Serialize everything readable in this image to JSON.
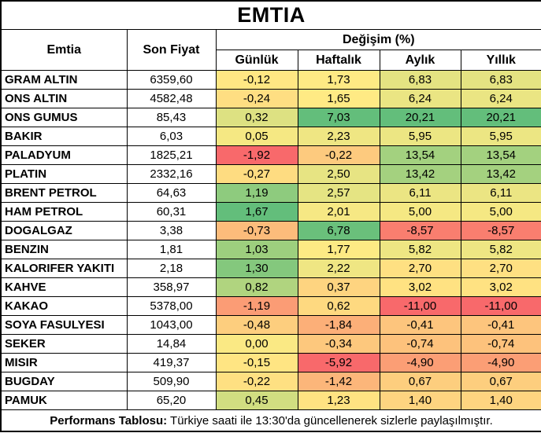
{
  "title": "EMTIA",
  "colors": {
    "border": "#000000",
    "background": "#ffffff",
    "scale_min_red": "#F8696B",
    "scale_mid_yellow": "#FFEB84",
    "scale_max_green": "#63BE7B"
  },
  "table": {
    "col_headers": {
      "emtia": "Emtia",
      "son_fiyat": "Son Fiyat",
      "degisim": "Değişim (%)",
      "sub": [
        "Günlük",
        "Haftalık",
        "Aylık",
        "Yıllık"
      ]
    },
    "rows": [
      {
        "name": "GRAM ALTIN",
        "price": "6359,60",
        "changes": [
          "-0,12",
          "1,73",
          "6,83",
          "6,83"
        ],
        "colors": [
          "#FFE783",
          "#FEEA84",
          "#E4E382",
          "#E4E382"
        ]
      },
      {
        "name": "ONS ALTIN",
        "price": "4582,48",
        "changes": [
          "-0,24",
          "1,65",
          "6,24",
          "6,24"
        ],
        "colors": [
          "#FEDE82",
          "#FFEA84",
          "#EAE583",
          "#EAE583"
        ]
      },
      {
        "name": "ONS GUMUS",
        "price": "85,43",
        "changes": [
          "0,32",
          "7,03",
          "20,21",
          "20,21"
        ],
        "colors": [
          "#DDE182",
          "#63BE7B",
          "#63BE7B",
          "#63BE7B"
        ]
      },
      {
        "name": "BAKIR",
        "price": "6,03",
        "changes": [
          "0,05",
          "2,23",
          "5,95",
          "5,95"
        ],
        "colors": [
          "#F5E883",
          "#EFE683",
          "#ECE683",
          "#ECE683"
        ]
      },
      {
        "name": "PALADYUM",
        "price": "1825,21",
        "changes": [
          "-1,92",
          "-0,22",
          "13,54",
          "13,54"
        ],
        "colors": [
          "#F8696B",
          "#FDCA7E",
          "#A3D17F",
          "#A3D17F"
        ]
      },
      {
        "name": "PLATIN",
        "price": "2332,16",
        "changes": [
          "-0,27",
          "2,50",
          "13,42",
          "13,42"
        ],
        "colors": [
          "#FEDC81",
          "#E7E483",
          "#A4D17F",
          "#A4D17F"
        ]
      },
      {
        "name": "BRENT PETROL",
        "price": "64,63",
        "changes": [
          "1,19",
          "2,57",
          "6,11",
          "6,11"
        ],
        "colors": [
          "#8ECB7E",
          "#E5E483",
          "#EBE583",
          "#EBE583"
        ]
      },
      {
        "name": "HAM PETROL",
        "price": "60,31",
        "changes": [
          "1,67",
          "2,01",
          "5,00",
          "5,00"
        ],
        "colors": [
          "#63BE7B",
          "#F6E884",
          "#F5E883",
          "#F5E883"
        ]
      },
      {
        "name": "DOGALGAZ",
        "price": "3,38",
        "changes": [
          "-0,73",
          "6,78",
          "-8,57",
          "-8,57"
        ],
        "colors": [
          "#FCBC7B",
          "#6AC07B",
          "#F97E6F",
          "#F97E6F"
        ]
      },
      {
        "name": "BENZIN",
        "price": "1,81",
        "changes": [
          "1,03",
          "1,77",
          "5,82",
          "5,82"
        ],
        "colors": [
          "#9DCF7E",
          "#FDEA84",
          "#EEE683",
          "#EEE683"
        ]
      },
      {
        "name": "KALORIFER YAKITI",
        "price": "2,18",
        "changes": [
          "1,30",
          "2,22",
          "2,70",
          "2,70"
        ],
        "colors": [
          "#84C87D",
          "#EFE683",
          "#FEE082",
          "#FEE082"
        ]
      },
      {
        "name": "KAHVE",
        "price": "358,97",
        "changes": [
          "0,82",
          "0,37",
          "3,02",
          "3,02"
        ],
        "colors": [
          "#B0D47F",
          "#FED480",
          "#FFE282",
          "#FFE282"
        ]
      },
      {
        "name": "KAKAO",
        "price": "5378,00",
        "changes": [
          "-1,19",
          "0,62",
          "-11,00",
          "-11,00"
        ],
        "colors": [
          "#FB9C75",
          "#FED980",
          "#F8696B",
          "#F8696B"
        ]
      },
      {
        "name": "SOYA FASULYESI",
        "price": "1043,00",
        "changes": [
          "-0,48",
          "-1,84",
          "-0,41",
          "-0,41"
        ],
        "colors": [
          "#FDCE7E",
          "#FCAF78",
          "#FDC57D",
          "#FDC57D"
        ]
      },
      {
        "name": "SEKER",
        "price": "14,84",
        "changes": [
          "0,00",
          "-0,34",
          "-0,74",
          "-0,74"
        ],
        "colors": [
          "#FAE984",
          "#FDC87D",
          "#FDC27C",
          "#FDC27C"
        ]
      },
      {
        "name": "MISIR",
        "price": "419,37",
        "changes": [
          "-0,15",
          "-5,92",
          "-4,90",
          "-4,90"
        ],
        "colors": [
          "#FFE583",
          "#F8696B",
          "#FB9E75",
          "#FB9E75"
        ]
      },
      {
        "name": "BUGDAY",
        "price": "509,90",
        "changes": [
          "-0,22",
          "-1,42",
          "0,67",
          "0,67"
        ],
        "colors": [
          "#FEE082",
          "#FCB67A",
          "#FDCE7E",
          "#FDCE7E"
        ]
      },
      {
        "name": "PAMUK",
        "price": "65,20",
        "changes": [
          "0,45",
          "1,23",
          "1,40",
          "1,40"
        ],
        "colors": [
          "#D1DE81",
          "#FFE382",
          "#FED480",
          "#FED480"
        ]
      }
    ]
  },
  "footer": {
    "bold": "Performans Tablosu:",
    "text": " Türkiye saati ile 13:30'da güncellenerek sizlerle paylaşılmıştır."
  },
  "chart_data": {
    "type": "table",
    "title": "EMTIA",
    "columns": [
      "Emtia",
      "Son Fiyat",
      "Değişim (%) Günlük",
      "Değişim (%) Haftalık",
      "Değişim (%) Aylık",
      "Değişim (%) Yıllık"
    ],
    "rows": [
      [
        "GRAM ALTIN",
        6359.6,
        -0.12,
        1.73,
        6.83,
        6.83
      ],
      [
        "ONS ALTIN",
        4582.48,
        -0.24,
        1.65,
        6.24,
        6.24
      ],
      [
        "ONS GUMUS",
        85.43,
        0.32,
        7.03,
        20.21,
        20.21
      ],
      [
        "BAKIR",
        6.03,
        0.05,
        2.23,
        5.95,
        5.95
      ],
      [
        "PALADYUM",
        1825.21,
        -1.92,
        -0.22,
        13.54,
        13.54
      ],
      [
        "PLATIN",
        2332.16,
        -0.27,
        2.5,
        13.42,
        13.42
      ],
      [
        "BRENT PETROL",
        64.63,
        1.19,
        2.57,
        6.11,
        6.11
      ],
      [
        "HAM PETROL",
        60.31,
        1.67,
        2.01,
        5.0,
        5.0
      ],
      [
        "DOGALGAZ",
        3.38,
        -0.73,
        6.78,
        -8.57,
        -8.57
      ],
      [
        "BENZIN",
        1.81,
        1.03,
        1.77,
        5.82,
        5.82
      ],
      [
        "KALORIFER YAKITI",
        2.18,
        1.3,
        2.22,
        2.7,
        2.7
      ],
      [
        "KAHVE",
        358.97,
        0.82,
        0.37,
        3.02,
        3.02
      ],
      [
        "KAKAO",
        5378.0,
        -1.19,
        0.62,
        -11.0,
        -11.0
      ],
      [
        "SOYA FASULYESI",
        1043.0,
        -0.48,
        -1.84,
        -0.41,
        -0.41
      ],
      [
        "SEKER",
        14.84,
        0.0,
        -0.34,
        -0.74,
        -0.74
      ],
      [
        "MISIR",
        419.37,
        -0.15,
        -5.92,
        -4.9,
        -4.9
      ],
      [
        "BUGDAY",
        509.9,
        -0.22,
        -1.42,
        0.67,
        0.67
      ],
      [
        "PAMUK",
        65.2,
        0.45,
        1.23,
        1.4,
        1.4
      ]
    ],
    "conditional_formatting": "3-color scale per column: red #F8696B (min) -> yellow #FFEB84 (mid) -> green #63BE7B (max)",
    "note": "Performans Tablosu: Türkiye saati ile 13:30'da güncellenerek sizlerle paylaşılmıştır."
  }
}
